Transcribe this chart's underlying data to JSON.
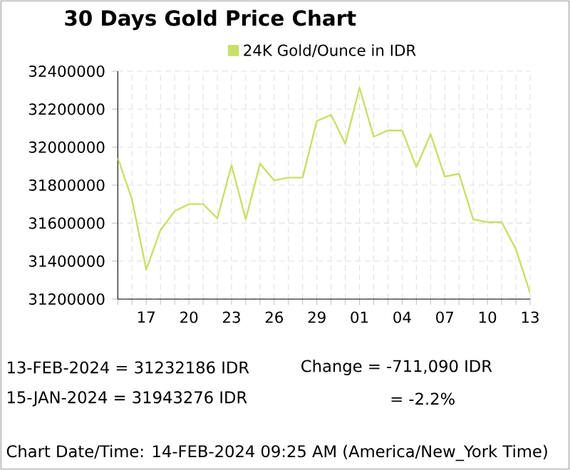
{
  "chart_data": {
    "type": "line",
    "title": "30 Days Gold Price Chart",
    "x": [
      "2024-01-15",
      "2024-01-16",
      "2024-01-17",
      "2024-01-18",
      "2024-01-19",
      "2024-01-20",
      "2024-01-21",
      "2024-01-22",
      "2024-01-23",
      "2024-01-24",
      "2024-01-25",
      "2024-01-26",
      "2024-01-27",
      "2024-01-28",
      "2024-01-29",
      "2024-01-30",
      "2024-01-31",
      "2024-02-01",
      "2024-02-02",
      "2024-02-03",
      "2024-02-04",
      "2024-02-05",
      "2024-02-06",
      "2024-02-07",
      "2024-02-08",
      "2024-02-09",
      "2024-02-10",
      "2024-02-11",
      "2024-02-12",
      "2024-02-13"
    ],
    "series": [
      {
        "name": "24K Gold/Ounce  in IDR",
        "color": "#c8e06a",
        "values": [
          31943276,
          31725000,
          31355000,
          31563000,
          31663000,
          31700000,
          31700000,
          31625000,
          31905000,
          31620000,
          31913000,
          31825000,
          31840000,
          31840000,
          32138000,
          32170000,
          32018000,
          32313000,
          32055000,
          32088000,
          32088000,
          31895000,
          32068000,
          31845000,
          31860000,
          31620000,
          31605000,
          31605000,
          31463000,
          31232186
        ]
      }
    ],
    "xlim": [
      "2024-01-15",
      "2024-02-13"
    ],
    "xticks": [
      {
        "value": "2024-01-15",
        "label": null
      },
      {
        "value": "2024-01-16",
        "label": null
      },
      {
        "value": "2024-01-17",
        "label": "17"
      },
      {
        "value": "2024-01-18",
        "label": null
      },
      {
        "value": "2024-01-19",
        "label": null
      },
      {
        "value": "2024-01-20",
        "label": "20"
      },
      {
        "value": "2024-01-21",
        "label": null
      },
      {
        "value": "2024-01-22",
        "label": null
      },
      {
        "value": "2024-01-23",
        "label": "23"
      },
      {
        "value": "2024-01-24",
        "label": null
      },
      {
        "value": "2024-01-25",
        "label": null
      },
      {
        "value": "2024-01-26",
        "label": "26"
      },
      {
        "value": "2024-01-27",
        "label": null
      },
      {
        "value": "2024-01-28",
        "label": null
      },
      {
        "value": "2024-01-29",
        "label": "29"
      },
      {
        "value": "2024-01-30",
        "label": null
      },
      {
        "value": "2024-01-31",
        "label": null
      },
      {
        "value": "2024-02-01",
        "label": "01"
      },
      {
        "value": "2024-02-02",
        "label": null
      },
      {
        "value": "2024-02-03",
        "label": null
      },
      {
        "value": "2024-02-04",
        "label": "04"
      },
      {
        "value": "2024-02-05",
        "label": null
      },
      {
        "value": "2024-02-06",
        "label": null
      },
      {
        "value": "2024-02-07",
        "label": "07"
      },
      {
        "value": "2024-02-08",
        "label": null
      },
      {
        "value": "2024-02-09",
        "label": null
      },
      {
        "value": "2024-02-10",
        "label": "10"
      },
      {
        "value": "2024-02-11",
        "label": null
      },
      {
        "value": "2024-02-12",
        "label": null
      },
      {
        "value": "2024-02-13",
        "label": "13"
      }
    ],
    "ylim": [
      31200000,
      32400000
    ],
    "yticks": [
      31200000,
      31400000,
      31600000,
      31800000,
      32000000,
      32200000,
      32400000
    ],
    "grid": true,
    "legend": "top",
    "marker": "none",
    "line_style": "solid",
    "annotations": [
      "13-FEB-2024 = 31232186 IDR",
      "15-JAN-2024 = 31943276 IDR",
      "Change   =  -711,090 IDR",
      "=  -2.2%",
      "Chart Date/Time: 14-FEB-2024 09:25 AM (America/New_York Time)"
    ]
  }
}
